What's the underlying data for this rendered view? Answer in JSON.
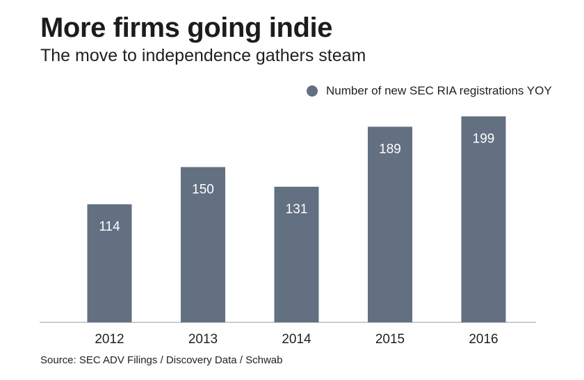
{
  "header": {
    "title": "More firms going indie",
    "subtitle": "The move to independence gathers steam"
  },
  "legend": {
    "label": "Number of new SEC RIA registrations YOY"
  },
  "footer": {
    "source": "Source: SEC ADV Filings / Discovery Data / Schwab"
  },
  "colors": {
    "bar": "#627082",
    "bar_label": "#ffffff",
    "baseline": "#999999",
    "text": "#1f1f1f"
  },
  "chart_data": {
    "type": "bar",
    "categories": [
      "2012",
      "2013",
      "2014",
      "2015",
      "2016"
    ],
    "series": [
      {
        "name": "Number of new SEC RIA registrations YOY",
        "values": [
          114,
          150,
          131,
          189,
          199
        ]
      }
    ],
    "ylim": [
      0,
      200
    ],
    "grid": false,
    "legend_position": "top-right",
    "data_labels": true
  }
}
